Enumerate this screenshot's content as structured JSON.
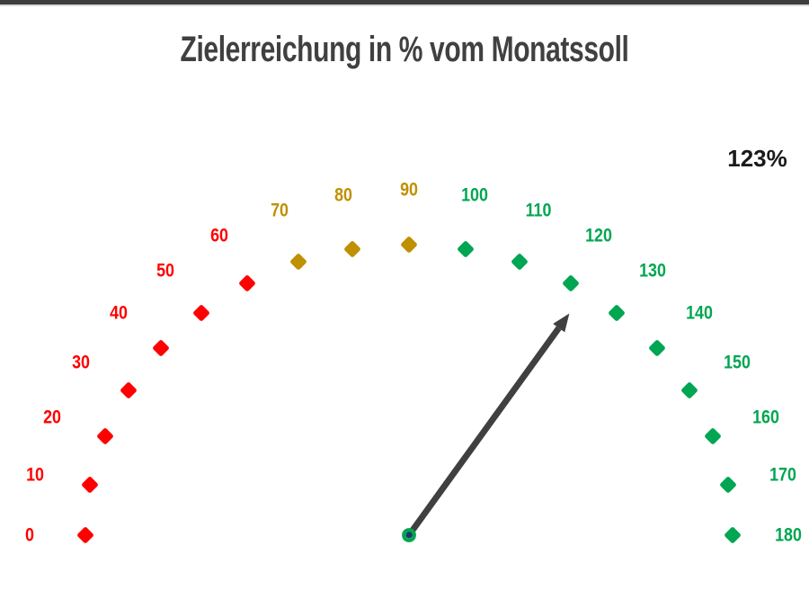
{
  "page": {
    "background": "#FFFFFF"
  },
  "decor": {
    "top_bar_color": "#3D3D3D",
    "top_bar_underline_color": "#D9D9D9"
  },
  "chart_data": {
    "type": "gauge",
    "title": "Zielerreichung in % vom Monatssoll",
    "title_color": "#404040",
    "value_label": "123%",
    "value_color": "#1A1A1A",
    "min": 0,
    "max": 180,
    "step": 10,
    "needle_value": 123,
    "legend": "none",
    "colors": {
      "red": "#FF0000",
      "gold": "#BF9000",
      "green": "#00A651",
      "needle": "#404040",
      "pivot_ring": "#00A651",
      "pivot_center": "#1F3864"
    },
    "segments": [
      {
        "from": 0,
        "to": 60,
        "color_key": "red"
      },
      {
        "from": 70,
        "to": 90,
        "color_key": "gold"
      },
      {
        "from": 100,
        "to": 180,
        "color_key": "green"
      }
    ],
    "ticks": [
      {
        "value": 0,
        "label": "0",
        "segment": "red"
      },
      {
        "value": 10,
        "label": "10",
        "segment": "red"
      },
      {
        "value": 20,
        "label": "20",
        "segment": "red"
      },
      {
        "value": 30,
        "label": "30",
        "segment": "red"
      },
      {
        "value": 40,
        "label": "40",
        "segment": "red"
      },
      {
        "value": 50,
        "label": "50",
        "segment": "red"
      },
      {
        "value": 60,
        "label": "60",
        "segment": "red"
      },
      {
        "value": 70,
        "label": "70",
        "segment": "gold"
      },
      {
        "value": 80,
        "label": "80",
        "segment": "gold"
      },
      {
        "value": 90,
        "label": "90",
        "segment": "gold"
      },
      {
        "value": 100,
        "label": "100",
        "segment": "green"
      },
      {
        "value": 110,
        "label": "110",
        "segment": "green"
      },
      {
        "value": 120,
        "label": "120",
        "segment": "green"
      },
      {
        "value": 130,
        "label": "130",
        "segment": "green"
      },
      {
        "value": 140,
        "label": "140",
        "segment": "green"
      },
      {
        "value": 150,
        "label": "150",
        "segment": "green"
      },
      {
        "value": 160,
        "label": "160",
        "segment": "green"
      },
      {
        "value": 170,
        "label": "170",
        "segment": "green"
      },
      {
        "value": 180,
        "label": "180",
        "segment": "green"
      }
    ]
  }
}
